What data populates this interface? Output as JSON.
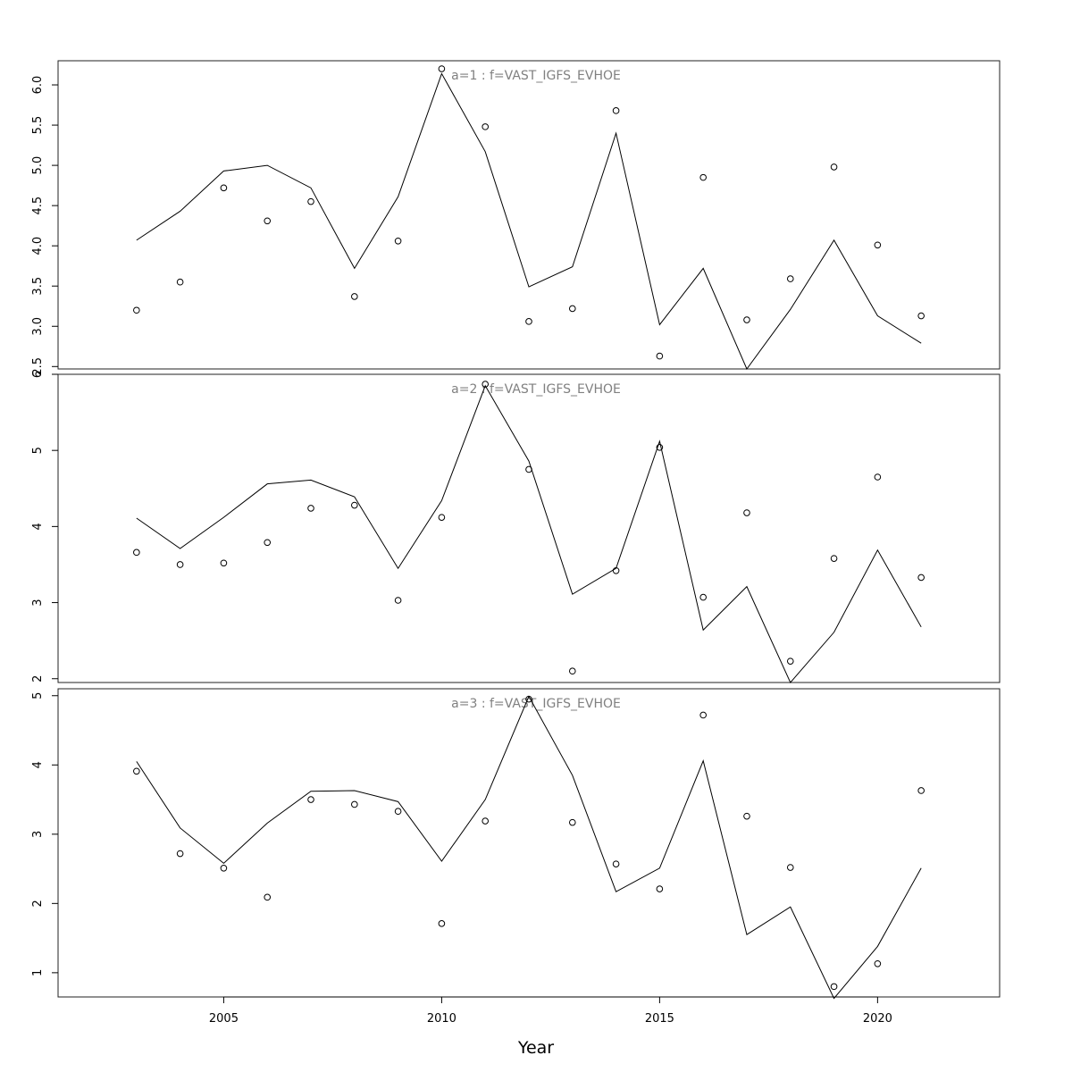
{
  "chart_data": {
    "type": "line",
    "xlabel": "Year",
    "xlim": [
      2001.2,
      2022.8
    ],
    "xticks": [
      2005,
      2010,
      2015,
      2020
    ],
    "panels": [
      {
        "title": "a=1  :  f=VAST_IGFS_EVHOE",
        "ylim": [
          2.47,
          6.3
        ],
        "yticks": [
          2.5,
          3.0,
          3.5,
          4.0,
          4.5,
          5.0,
          5.5,
          6.0
        ],
        "ytick_labels": [
          "2.5",
          "3.0",
          "3.5",
          "4.0",
          "4.5",
          "5.0",
          "5.5",
          "6.0"
        ],
        "x": [
          2003,
          2004,
          2005,
          2006,
          2007,
          2008,
          2009,
          2010,
          2011,
          2012,
          2013,
          2014,
          2015,
          2016,
          2017,
          2018,
          2019,
          2020,
          2021
        ],
        "series": [
          {
            "kind": "line",
            "values": [
              4.07,
              4.43,
              4.93,
              5.0,
              4.72,
              3.72,
              4.61,
              6.14,
              5.17,
              3.49,
              3.74,
              5.4,
              3.02,
              3.72,
              2.47,
              3.21,
              4.07,
              3.13,
              2.79
            ]
          },
          {
            "kind": "points",
            "values": [
              3.2,
              3.55,
              4.72,
              4.31,
              4.55,
              3.37,
              4.06,
              6.2,
              5.48,
              3.06,
              3.22,
              5.68,
              2.63,
              4.85,
              3.08,
              3.59,
              4.98,
              4.01,
              3.13
            ]
          }
        ]
      },
      {
        "title": "a=2  :  f=VAST_IGFS_EVHOE",
        "ylim": [
          1.95,
          6.0
        ],
        "yticks": [
          2,
          3,
          4,
          5,
          6
        ],
        "ytick_labels": [
          "2",
          "3",
          "4",
          "5",
          "6"
        ],
        "x": [
          2003,
          2004,
          2005,
          2006,
          2007,
          2008,
          2009,
          2010,
          2011,
          2012,
          2013,
          2014,
          2015,
          2016,
          2017,
          2018,
          2019,
          2020,
          2021
        ],
        "series": [
          {
            "kind": "line",
            "values": [
              4.11,
              3.71,
              4.12,
              4.56,
              4.61,
              4.39,
              3.45,
              4.34,
              5.85,
              4.86,
              3.11,
              3.45,
              5.12,
              2.64,
              3.21,
              1.95,
              2.61,
              3.69,
              2.68
            ]
          },
          {
            "kind": "points",
            "values": [
              3.66,
              3.5,
              3.52,
              3.79,
              4.24,
              4.28,
              3.03,
              4.12,
              5.87,
              4.75,
              2.1,
              3.42,
              5.04,
              3.07,
              4.18,
              2.23,
              3.58,
              4.65,
              3.33
            ]
          }
        ]
      },
      {
        "title": "a=3  :  f=VAST_IGFS_EVHOE",
        "ylim": [
          0.65,
          5.1
        ],
        "yticks": [
          1,
          2,
          3,
          4,
          5
        ],
        "ytick_labels": [
          "1",
          "2",
          "3",
          "4",
          "5"
        ],
        "x": [
          2003,
          2004,
          2005,
          2006,
          2007,
          2008,
          2009,
          2010,
          2011,
          2012,
          2013,
          2014,
          2015,
          2016,
          2017,
          2018,
          2019,
          2020,
          2021
        ],
        "series": [
          {
            "kind": "line",
            "values": [
              4.05,
              3.09,
              2.58,
              3.16,
              3.62,
              3.63,
              3.47,
              2.61,
              3.5,
              4.99,
              3.85,
              2.17,
              2.51,
              4.06,
              1.55,
              1.95,
              0.63,
              1.38,
              2.51
            ]
          },
          {
            "kind": "points",
            "values": [
              3.91,
              2.72,
              2.51,
              2.09,
              3.5,
              3.43,
              3.33,
              1.71,
              3.19,
              4.95,
              3.17,
              2.57,
              2.21,
              4.72,
              3.26,
              2.52,
              0.8,
              1.13,
              3.63
            ]
          }
        ]
      }
    ]
  }
}
